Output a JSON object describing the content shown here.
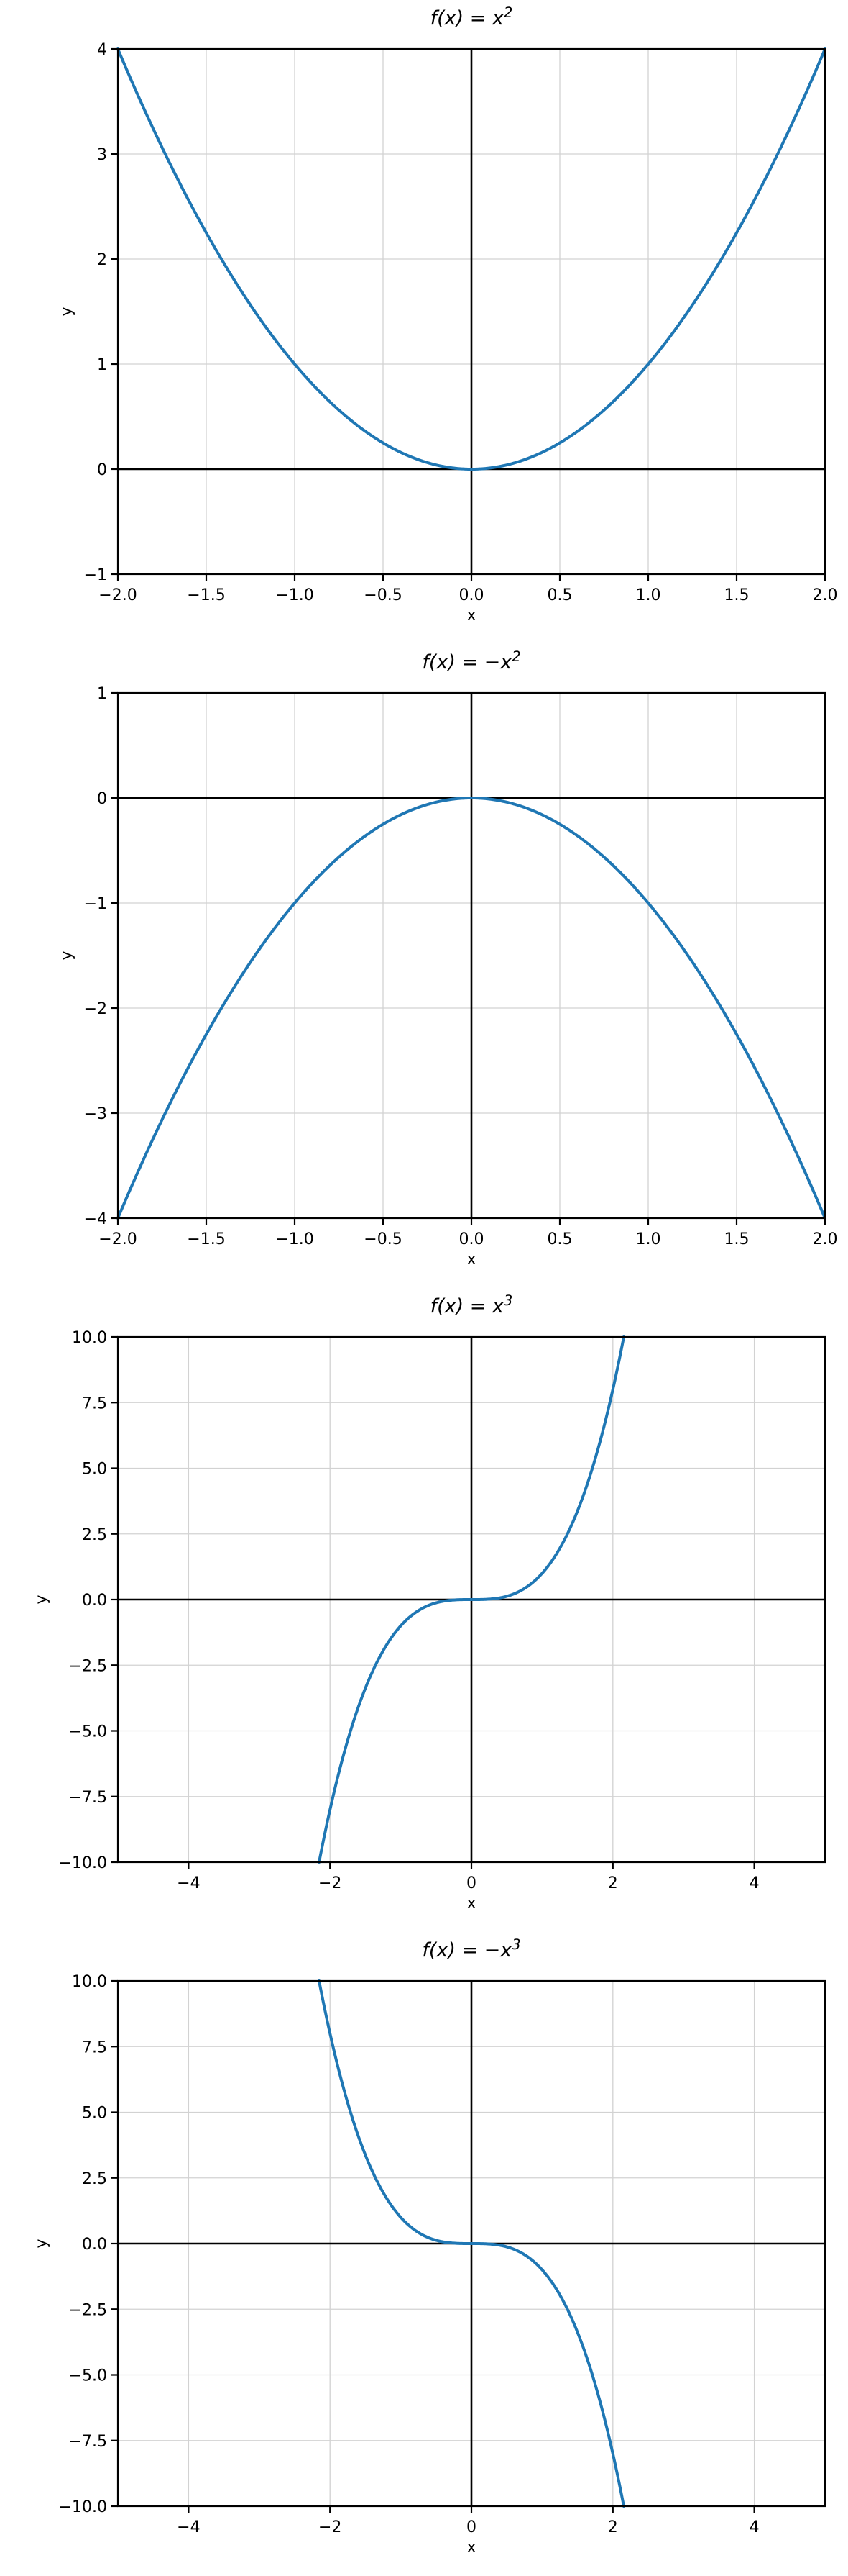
{
  "page": {
    "background": "#ffffff"
  },
  "style": {
    "line_color": "#1f77b4",
    "grid_color": "#d2d2d2",
    "axis_color": "#000000",
    "text_color": "#000000"
  },
  "chart_data": [
    {
      "type": "line",
      "title": "f(x) = x²",
      "title_base": "f(x) = x",
      "title_sup": "2",
      "xlabel": "x",
      "ylabel": "y",
      "xlim": [
        -2,
        2
      ],
      "ylim": [
        -1,
        4
      ],
      "grid": true,
      "zero_lines": true,
      "legend": false,
      "xtick_values": [
        -2,
        -1.5,
        -1,
        -0.5,
        0,
        0.5,
        1,
        1.5,
        2
      ],
      "xtick_labels": [
        "−2.0",
        "−1.5",
        "−1.0",
        "−0.5",
        "0.0",
        "0.5",
        "1.0",
        "1.5",
        "2.0"
      ],
      "ytick_values": [
        -1,
        0,
        1,
        2,
        3,
        4
      ],
      "ytick_labels": [
        "−1",
        "0",
        "1",
        "2",
        "3",
        "4"
      ],
      "series": [
        {
          "name": "f(x) = x^2",
          "fn_sign": 1,
          "fn_exponent": 2,
          "x": [
            -2,
            -1.75,
            -1.5,
            -1.25,
            -1,
            -0.75,
            -0.5,
            -0.25,
            0,
            0.25,
            0.5,
            0.75,
            1,
            1.25,
            1.5,
            1.75,
            2
          ],
          "y": [
            4,
            3.0625,
            2.25,
            1.5625,
            1,
            0.5625,
            0.25,
            0.0625,
            0,
            0.0625,
            0.25,
            0.5625,
            1,
            1.5625,
            2.25,
            3.0625,
            4
          ]
        }
      ]
    },
    {
      "type": "line",
      "title": "f(x) = −x²",
      "title_base": "f(x) = −x",
      "title_sup": "2",
      "xlabel": "x",
      "ylabel": "y",
      "xlim": [
        -2,
        2
      ],
      "ylim": [
        -4,
        1
      ],
      "grid": true,
      "zero_lines": true,
      "legend": false,
      "xtick_values": [
        -2,
        -1.5,
        -1,
        -0.5,
        0,
        0.5,
        1,
        1.5,
        2
      ],
      "xtick_labels": [
        "−2.0",
        "−1.5",
        "−1.0",
        "−0.5",
        "0.0",
        "0.5",
        "1.0",
        "1.5",
        "2.0"
      ],
      "ytick_values": [
        -4,
        -3,
        -2,
        -1,
        0,
        1
      ],
      "ytick_labels": [
        "−4",
        "−3",
        "−2",
        "−1",
        "0",
        "1"
      ],
      "series": [
        {
          "name": "f(x) = -x^2",
          "fn_sign": -1,
          "fn_exponent": 2,
          "x": [
            -2,
            -1.75,
            -1.5,
            -1.25,
            -1,
            -0.75,
            -0.5,
            -0.25,
            0,
            0.25,
            0.5,
            0.75,
            1,
            1.25,
            1.5,
            1.75,
            2
          ],
          "y": [
            -4,
            -3.0625,
            -2.25,
            -1.5625,
            -1,
            -0.5625,
            -0.25,
            -0.0625,
            0,
            -0.0625,
            -0.25,
            -0.5625,
            -1,
            -1.5625,
            -2.25,
            -3.0625,
            -4
          ]
        }
      ]
    },
    {
      "type": "line",
      "title": "f(x) = x³",
      "title_base": "f(x) = x",
      "title_sup": "3",
      "xlabel": "x",
      "ylabel": "y",
      "xlim": [
        -5,
        5
      ],
      "ylim": [
        -10,
        10
      ],
      "grid": true,
      "zero_lines": true,
      "legend": false,
      "xtick_values": [
        -4,
        -2,
        0,
        2,
        4
      ],
      "xtick_labels": [
        "−4",
        "−2",
        "0",
        "2",
        "4"
      ],
      "ytick_values": [
        -10,
        -7.5,
        -5,
        -2.5,
        0,
        2.5,
        5,
        7.5,
        10
      ],
      "ytick_labels": [
        "−10.0",
        "−7.5",
        "−5.0",
        "−2.5",
        "0.0",
        "2.5",
        "5.0",
        "7.5",
        "10.0"
      ],
      "series": [
        {
          "name": "f(x) = x^3",
          "fn_sign": 1,
          "fn_exponent": 3,
          "x": [
            -2.154,
            -2,
            -1.75,
            -1.5,
            -1.25,
            -1,
            -0.5,
            0,
            0.5,
            1,
            1.25,
            1.5,
            1.75,
            2,
            2.154
          ],
          "y": [
            -10,
            -8,
            -5.359,
            -3.375,
            -1.953,
            -1,
            -0.125,
            0,
            0.125,
            1,
            1.953,
            3.375,
            5.359,
            8,
            10
          ]
        }
      ]
    },
    {
      "type": "line",
      "title": "f(x) = −x³",
      "title_base": "f(x) = −x",
      "title_sup": "3",
      "xlabel": "x",
      "ylabel": "y",
      "xlim": [
        -5,
        5
      ],
      "ylim": [
        -10,
        10
      ],
      "grid": true,
      "zero_lines": true,
      "legend": false,
      "xtick_values": [
        -4,
        -2,
        0,
        2,
        4
      ],
      "xtick_labels": [
        "−4",
        "−2",
        "0",
        "2",
        "4"
      ],
      "ytick_values": [
        -10,
        -7.5,
        -5,
        -2.5,
        0,
        2.5,
        5,
        7.5,
        10
      ],
      "ytick_labels": [
        "−10.0",
        "−7.5",
        "−5.0",
        "−2.5",
        "0.0",
        "2.5",
        "5.0",
        "7.5",
        "10.0"
      ],
      "series": [
        {
          "name": "f(x) = -x^3",
          "fn_sign": -1,
          "fn_exponent": 3,
          "x": [
            -2.154,
            -2,
            -1.75,
            -1.5,
            -1.25,
            -1,
            -0.5,
            0,
            0.5,
            1,
            1.25,
            1.5,
            1.75,
            2,
            2.154
          ],
          "y": [
            10,
            8,
            5.359,
            3.375,
            1.953,
            1,
            0.125,
            0,
            -0.125,
            -1,
            -1.953,
            -3.375,
            -5.359,
            -8,
            -10
          ]
        }
      ]
    }
  ]
}
